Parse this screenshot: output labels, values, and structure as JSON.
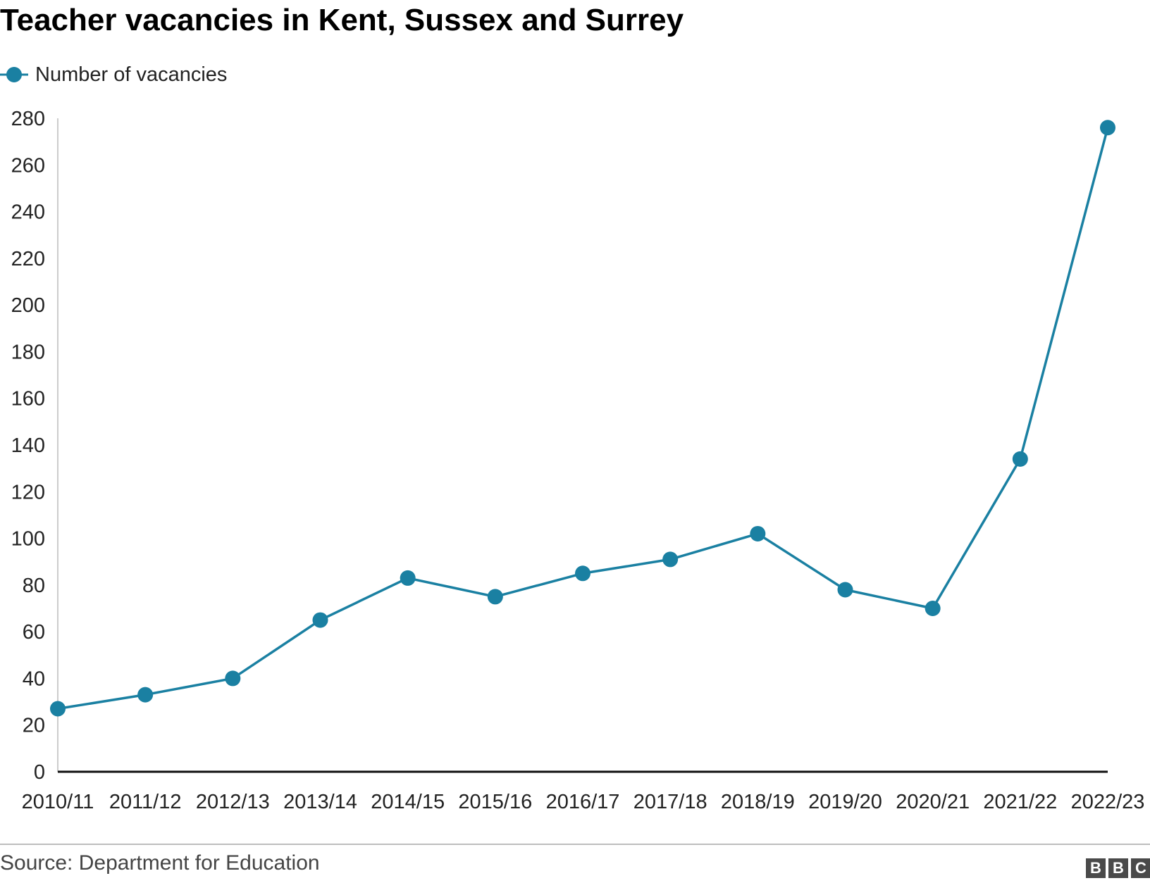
{
  "chart_data": {
    "type": "line",
    "title": "Teacher vacancies in Kent, Sussex and Surrey",
    "xlabel": "",
    "ylabel": "",
    "categories": [
      "2010/11",
      "2011/12",
      "2012/13",
      "2013/14",
      "2014/15",
      "2015/16",
      "2016/17",
      "2017/18",
      "2018/19",
      "2019/20",
      "2020/21",
      "2021/22",
      "2022/23"
    ],
    "series": [
      {
        "name": "Number of vacancies",
        "values": [
          27,
          33,
          40,
          65,
          83,
          75,
          85,
          91,
          102,
          78,
          70,
          134,
          276
        ],
        "color": "#1a80a2"
      }
    ],
    "yticks": [
      0,
      20,
      40,
      60,
      80,
      100,
      120,
      140,
      160,
      180,
      200,
      220,
      240,
      260,
      280
    ],
    "ylim": [
      0,
      280
    ],
    "grid": false,
    "legend_position": "top-left"
  },
  "source": "Source: Department for Education",
  "logo": [
    "B",
    "B",
    "C"
  ]
}
